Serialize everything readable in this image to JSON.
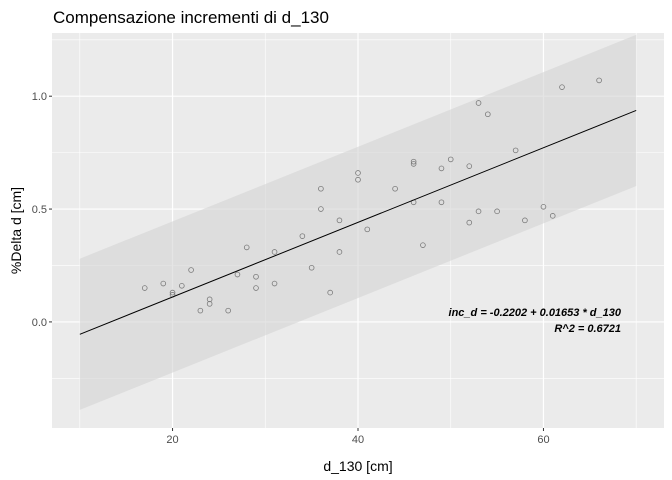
{
  "chart_data": {
    "type": "scatter",
    "title": "Compensazione incrementi di d_130",
    "xlabel": "d_130 [cm]",
    "ylabel": "%Delta d [cm]",
    "xlim": [
      7,
      73
    ],
    "ylim": [
      -0.47,
      1.28
    ],
    "x_ticks": [
      20,
      40,
      60
    ],
    "x_tick_labels": [
      "20",
      "40",
      "60"
    ],
    "y_ticks": [
      0.0,
      0.5,
      1.0
    ],
    "y_tick_labels": [
      "0.0",
      "0.5",
      "1.0"
    ],
    "grid": true,
    "legend": "none",
    "colors": {
      "panel_background": "#ebebeb",
      "grid": "#ffffff",
      "band": "#d4d4d4",
      "points": "#7a7a7a",
      "fit_line": "#000000"
    },
    "band_range": [
      10,
      70
    ],
    "band_half_width": 0.335,
    "fit_line": {
      "intercept": -0.2202,
      "slope": 0.01653,
      "x_range": [
        10,
        70
      ]
    },
    "annotations": [
      "inc_d = -0.2202 + 0.01653 * d_130",
      "R^2 = 0.6721"
    ],
    "points": [
      {
        "x": 17,
        "y": 0.15
      },
      {
        "x": 19,
        "y": 0.17
      },
      {
        "x": 20,
        "y": 0.12
      },
      {
        "x": 20,
        "y": 0.13
      },
      {
        "x": 21,
        "y": 0.16
      },
      {
        "x": 22,
        "y": 0.23
      },
      {
        "x": 23,
        "y": 0.05
      },
      {
        "x": 24,
        "y": 0.08
      },
      {
        "x": 24,
        "y": 0.1
      },
      {
        "x": 26,
        "y": 0.05
      },
      {
        "x": 27,
        "y": 0.21
      },
      {
        "x": 28,
        "y": 0.33
      },
      {
        "x": 29,
        "y": 0.15
      },
      {
        "x": 29,
        "y": 0.2
      },
      {
        "x": 31,
        "y": 0.31
      },
      {
        "x": 31,
        "y": 0.17
      },
      {
        "x": 34,
        "y": 0.38
      },
      {
        "x": 35,
        "y": 0.24
      },
      {
        "x": 36,
        "y": 0.59
      },
      {
        "x": 36,
        "y": 0.5
      },
      {
        "x": 37,
        "y": 0.13
      },
      {
        "x": 38,
        "y": 0.45
      },
      {
        "x": 38,
        "y": 0.31
      },
      {
        "x": 40,
        "y": 0.66
      },
      {
        "x": 40,
        "y": 0.63
      },
      {
        "x": 41,
        "y": 0.41
      },
      {
        "x": 44,
        "y": 0.59
      },
      {
        "x": 46,
        "y": 0.71
      },
      {
        "x": 46,
        "y": 0.7
      },
      {
        "x": 46,
        "y": 0.53
      },
      {
        "x": 47,
        "y": 0.34
      },
      {
        "x": 49,
        "y": 0.68
      },
      {
        "x": 49,
        "y": 0.53
      },
      {
        "x": 50,
        "y": 0.72
      },
      {
        "x": 52,
        "y": 0.69
      },
      {
        "x": 52,
        "y": 0.44
      },
      {
        "x": 53,
        "y": 0.97
      },
      {
        "x": 53,
        "y": 0.49
      },
      {
        "x": 54,
        "y": 0.92
      },
      {
        "x": 55,
        "y": 0.49
      },
      {
        "x": 57,
        "y": 0.76
      },
      {
        "x": 58,
        "y": 0.45
      },
      {
        "x": 60,
        "y": 0.51
      },
      {
        "x": 61,
        "y": 0.47
      },
      {
        "x": 62,
        "y": 1.04
      },
      {
        "x": 66,
        "y": 1.07
      }
    ]
  }
}
